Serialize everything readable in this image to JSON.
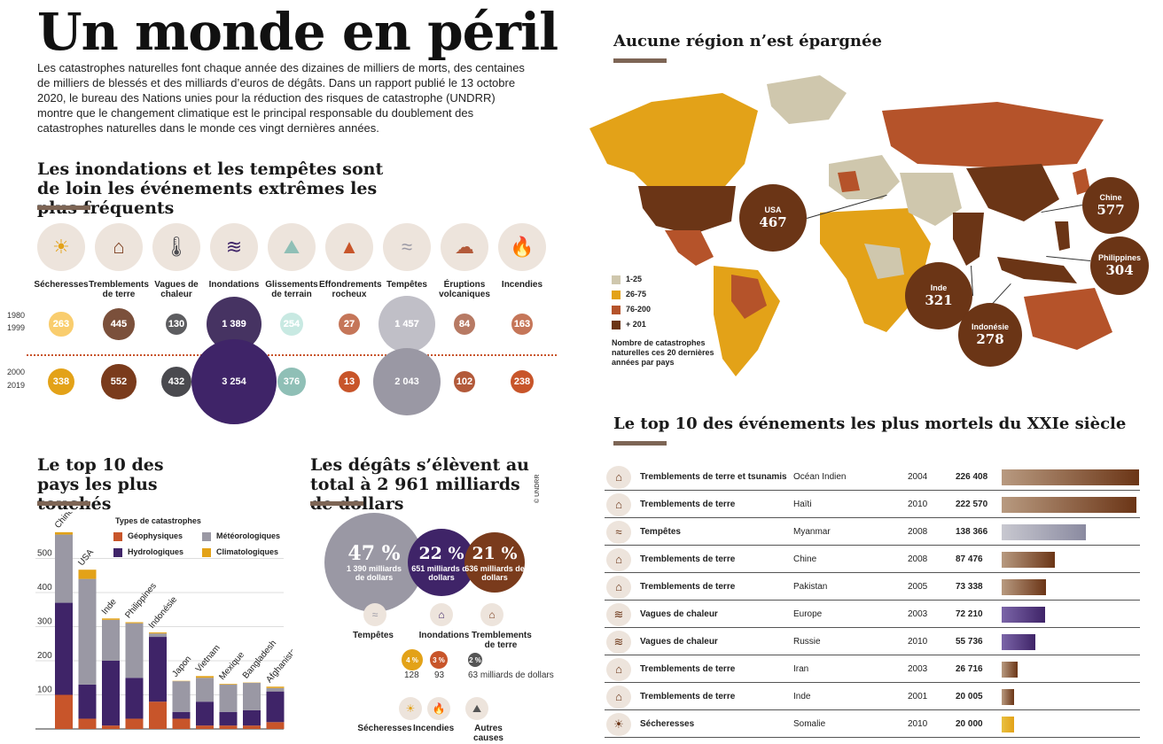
{
  "title": "Un monde en péril",
  "intro": "Les catastrophes naturelles font chaque année des dizaines de milliers de morts, des centaines de milliers de blessés et des milliards d’euros de dégâts. Dans un rapport publié le 13 octobre 2020, le bureau des Nations unies pour la réduction des risques de catastrophe (UNDRR) montre que le changement climatique est le principal responsable du doublement des catastrophes naturelles dans le monde ces vingt dernières années.",
  "colors": {
    "geo": "#c8552a",
    "hydro": "#3f2468",
    "meteo": "#9a98a4",
    "clima": "#e3a218",
    "brown": "#7a3b1c",
    "underline": "#7d6555"
  },
  "chart_data": [
    {
      "type": "bubble",
      "title": "Les inondations et les tempêtes sont de loin les événements extrêmes les plus fréquents",
      "categories": [
        "Sécheresses",
        "Tremblements de terre",
        "Vagues de chaleur",
        "Inondations",
        "Glissements de terrain",
        "Effondrements rocheux",
        "Tempêtes",
        "Éruptions volcaniques",
        "Incendies"
      ],
      "period_labels": [
        "1980",
        "1999",
        "2000",
        "2019"
      ],
      "series": [
        {
          "name": "1980 1999",
          "values": [
            263,
            445,
            130,
            1389,
            254,
            27,
            1457,
            84,
            163
          ],
          "labels": [
            "263",
            "445",
            "130",
            "1 389",
            "254",
            "27",
            "1 457",
            "84",
            "163"
          ]
        },
        {
          "name": "2000 2019",
          "values": [
            338,
            552,
            432,
            3254,
            376,
            13,
            2043,
            102,
            238
          ],
          "labels": [
            "338",
            "552",
            "432",
            "3 254",
            "376",
            "13",
            "2 043",
            "102",
            "238"
          ]
        }
      ],
      "colors": [
        "#e3a218",
        "#7a3b1c",
        "#4a4a4f",
        "#3f2468",
        "#8fbfb6",
        "#c8552a",
        "#9a98a4",
        "#b35a3a",
        "#c8552a"
      ]
    },
    {
      "type": "bar",
      "title": "Le top 10 des pays les plus touchés",
      "legend_title": "Types de catastrophes",
      "categories": [
        "Chine",
        "USA",
        "Inde",
        "Philippines",
        "Indonésie",
        "Japon",
        "Vietnam",
        "Mexique",
        "Bangladesh",
        "Afghanistan"
      ],
      "series": [
        {
          "name": "Géophysiques",
          "values": [
            100,
            30,
            10,
            30,
            80,
            30,
            10,
            10,
            10,
            20
          ]
        },
        {
          "name": "Hydrologiques",
          "values": [
            270,
            100,
            190,
            120,
            190,
            20,
            70,
            40,
            45,
            90
          ]
        },
        {
          "name": "Météorologiques",
          "values": [
            200,
            310,
            120,
            160,
            10,
            90,
            70,
            80,
            80,
            10
          ]
        },
        {
          "name": "Climatologiques",
          "values": [
            7,
            27,
            4,
            3,
            3,
            1,
            5,
            2,
            1,
            4
          ]
        }
      ],
      "stacked": true,
      "yticks": [
        100,
        200,
        300,
        400,
        500
      ],
      "ylim": [
        0,
        600
      ]
    },
    {
      "type": "bubble",
      "title": "Les dégâts s’élèvent au total à 2 961 milliards de dollars",
      "source": "© UNDRR",
      "main": [
        {
          "pct": "47 %",
          "amount": "1 390 milliards de dollars",
          "label": "Tempêtes",
          "value": 1390
        },
        {
          "pct": "22 %",
          "amount": "651 milliards de dollars",
          "label": "Inondations",
          "value": 651
        },
        {
          "pct": "21 %",
          "amount": "636 milliards de dollars",
          "label": "Tremblements de terre",
          "value": 636
        }
      ],
      "minor": [
        {
          "pct": "4 %",
          "value": 128,
          "label": "Sécheresses"
        },
        {
          "pct": "3 %",
          "value": 93,
          "label": "Incendies"
        },
        {
          "pct": "2 %",
          "value": 63,
          "label": "Autres causes",
          "unit": "milliards de dollars"
        }
      ]
    },
    {
      "type": "map",
      "title": "Aucune région n’est épargnée",
      "legend": [
        "1-25",
        "26-75",
        "76-200",
        "+ 201"
      ],
      "legend_colors": [
        "#cfc7ad",
        "#e3a218",
        "#b5532a",
        "#6b3516"
      ],
      "legend_caption": "Nombre de catastrophes naturelles ces 20 dernières années par pays",
      "callouts": [
        {
          "name": "USA",
          "value": 467
        },
        {
          "name": "Chine",
          "value": 577
        },
        {
          "name": "Philippines",
          "value": 304
        },
        {
          "name": "Inde",
          "value": 321
        },
        {
          "name": "Indonésie",
          "value": 278
        }
      ]
    },
    {
      "type": "bar",
      "orientation": "horizontal",
      "title": "Le top 10 des événements les plus mortels du XXIe siècle",
      "rows": [
        {
          "event": "Tremblements de terre et tsunamis",
          "place": "Océan Indien",
          "year": "2004",
          "deaths": 226408,
          "label": "226 408",
          "kind": "geo"
        },
        {
          "event": "Tremblements de terre",
          "place": "Haïti",
          "year": "2010",
          "deaths": 222570,
          "label": "222 570",
          "kind": "geo"
        },
        {
          "event": "Tempêtes",
          "place": "Myanmar",
          "year": "2008",
          "deaths": 138366,
          "label": "138 366",
          "kind": "meteo"
        },
        {
          "event": "Tremblements de terre",
          "place": "Chine",
          "year": "2008",
          "deaths": 87476,
          "label": "87 476",
          "kind": "geo"
        },
        {
          "event": "Tremblements de terre",
          "place": "Pakistan",
          "year": "2005",
          "deaths": 73338,
          "label": "73 338",
          "kind": "geo"
        },
        {
          "event": "Vagues de chaleur",
          "place": "Europe",
          "year": "2003",
          "deaths": 72210,
          "label": "72 210",
          "kind": "hydro"
        },
        {
          "event": "Vagues de chaleur",
          "place": "Russie",
          "year": "2010",
          "deaths": 55736,
          "label": "55 736",
          "kind": "hydro"
        },
        {
          "event": "Tremblements de terre",
          "place": "Iran",
          "year": "2003",
          "deaths": 26716,
          "label": "26 716",
          "kind": "geo"
        },
        {
          "event": "Tremblements de terre",
          "place": "Inde",
          "year": "2001",
          "deaths": 20005,
          "label": "20 005",
          "kind": "geo"
        },
        {
          "event": "Sécheresses",
          "place": "Somalie",
          "year": "2010",
          "deaths": 20000,
          "label": "20 000",
          "kind": "clima"
        }
      ]
    }
  ]
}
